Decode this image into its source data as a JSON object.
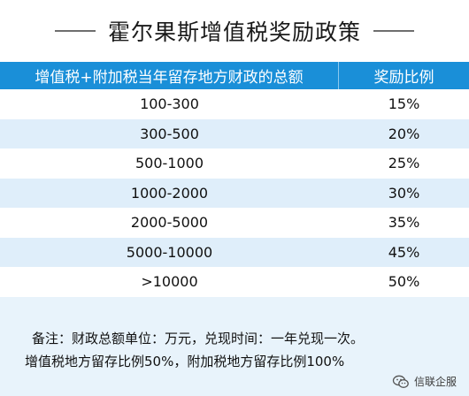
{
  "title": "霍尔果斯增值税奖励政策",
  "table": {
    "headers": [
      "增值税+附加税当年留存地方财政的总额",
      "奖励比例"
    ],
    "rows": [
      {
        "range": "100-300",
        "ratio": "15%"
      },
      {
        "range": "300-500",
        "ratio": "20%"
      },
      {
        "range": "500-1000",
        "ratio": "25%"
      },
      {
        "range": "1000-2000",
        "ratio": "30%"
      },
      {
        "range": "2000-5000",
        "ratio": "35%"
      },
      {
        "range": "5000-10000",
        "ratio": "45%"
      },
      {
        "range": ">10000",
        "ratio": "50%"
      }
    ]
  },
  "notes": {
    "line1": "备注：财政总额单位：万元，兑现时间：一年兑现一次。",
    "line2": "增值税地方留存比例50%，附加税地方留存比例100%"
  },
  "watermark": {
    "icon": "wechat-icon",
    "label": "信联企服"
  },
  "colors": {
    "header_bg": "#1a8fd8",
    "row_alt_bg": "#dfeefa",
    "page_bg": "#e8f3fb"
  }
}
